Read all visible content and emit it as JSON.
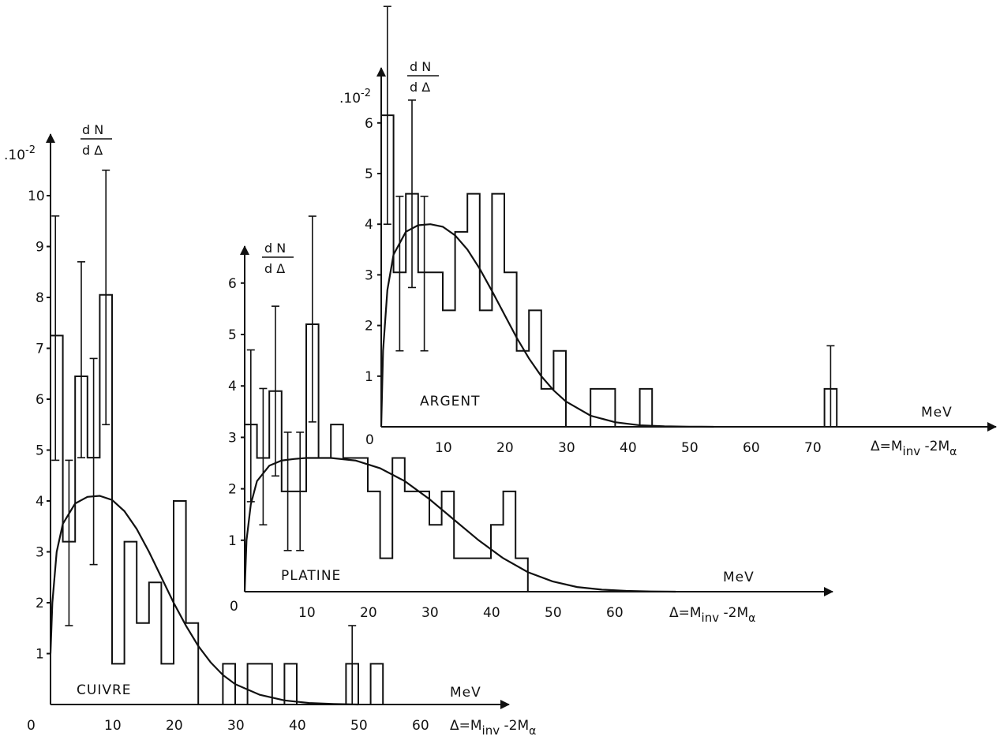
{
  "chart_data": [
    {
      "type": "bar",
      "name": "CUIVRE",
      "label": "CUIVRE",
      "unit": "MeV",
      "xlabel": "Δ=M",
      "xlabel_sub1": "inv",
      "xlabel_mid": " -2M",
      "xlabel_sub2": "α",
      "ylabel_num": "d N",
      "ylabel_den": "d Δ",
      "yscale": ".10",
      "yscale_exp": "-2",
      "xlim": [
        0,
        70
      ],
      "ylim": [
        0,
        11
      ],
      "xticks": [
        0,
        10,
        20,
        30,
        40,
        50,
        60
      ],
      "yticks": [
        1,
        2,
        3,
        4,
        5,
        6,
        7,
        8,
        9,
        10
      ],
      "bin_width": 2,
      "bins": [
        {
          "x0": 0,
          "x1": 2,
          "y": 7.25
        },
        {
          "x0": 2,
          "x1": 4,
          "y": 3.2
        },
        {
          "x0": 4,
          "x1": 6,
          "y": 6.45
        },
        {
          "x0": 6,
          "x1": 8,
          "y": 4.85
        },
        {
          "x0": 8,
          "x1": 10,
          "y": 8.05
        },
        {
          "x0": 10,
          "x1": 12,
          "y": 0.8
        },
        {
          "x0": 12,
          "x1": 14,
          "y": 3.2
        },
        {
          "x0": 14,
          "x1": 16,
          "y": 1.6
        },
        {
          "x0": 16,
          "x1": 18,
          "y": 2.4
        },
        {
          "x0": 18,
          "x1": 20,
          "y": 0.8
        },
        {
          "x0": 20,
          "x1": 22,
          "y": 4.0
        },
        {
          "x0": 22,
          "x1": 24,
          "y": 1.6
        },
        {
          "x0": 28,
          "x1": 30,
          "y": 0.8
        },
        {
          "x0": 30,
          "x1": 32,
          "y": 0.0
        },
        {
          "x0": 32,
          "x1": 36,
          "y": 0.8
        },
        {
          "x0": 38,
          "x1": 40,
          "y": 0.8
        },
        {
          "x0": 48,
          "x1": 50,
          "y": 0.8
        },
        {
          "x0": 52,
          "x1": 54,
          "y": 0.8
        }
      ],
      "error_bars": [
        {
          "x": 0.8,
          "low": 4.8,
          "high": 9.6
        },
        {
          "x": 3.0,
          "low": 1.55,
          "high": 4.8
        },
        {
          "x": 5.0,
          "low": 4.85,
          "high": 8.7
        },
        {
          "x": 7.0,
          "low": 2.75,
          "high": 6.8
        },
        {
          "x": 9.0,
          "low": 5.5,
          "high": 10.5
        },
        {
          "x": 49.0,
          "low": 0.0,
          "high": 1.55
        }
      ],
      "fit_curve": {
        "x": [
          0,
          0.3,
          1,
          2,
          4,
          6,
          8,
          10,
          12,
          14,
          16,
          18,
          20,
          22,
          24,
          26,
          28,
          30,
          34,
          38,
          42,
          46,
          50
        ],
        "y": [
          1.0,
          2.0,
          3.0,
          3.55,
          3.95,
          4.08,
          4.1,
          4.02,
          3.8,
          3.45,
          3.0,
          2.5,
          2.0,
          1.55,
          1.15,
          0.83,
          0.58,
          0.4,
          0.19,
          0.08,
          0.03,
          0.01,
          0.0
        ]
      }
    },
    {
      "type": "bar",
      "name": "PLATINE",
      "label": "PLATINE",
      "unit": "MeV",
      "xlabel": "Δ=M",
      "xlabel_sub1": "inv",
      "xlabel_mid": " -2M",
      "xlabel_sub2": "α",
      "ylabel_num": "d N",
      "ylabel_den": "d Δ",
      "xlim": [
        0,
        95
      ],
      "ylim": [
        0,
        7
      ],
      "xticks": [
        10,
        20,
        30,
        40,
        50,
        60
      ],
      "xtick_zero": "0",
      "yticks": [
        1,
        2,
        3,
        4,
        5,
        6
      ],
      "bins": [
        {
          "x0": 0,
          "x1": 2,
          "y": 3.25
        },
        {
          "x0": 2,
          "x1": 4,
          "y": 2.6
        },
        {
          "x0": 4,
          "x1": 6,
          "y": 3.9
        },
        {
          "x0": 6,
          "x1": 8,
          "y": 1.95
        },
        {
          "x0": 8,
          "x1": 10,
          "y": 1.95
        },
        {
          "x0": 10,
          "x1": 12,
          "y": 5.2
        },
        {
          "x0": 12,
          "x1": 14,
          "y": 2.6
        },
        {
          "x0": 14,
          "x1": 16,
          "y": 3.25
        },
        {
          "x0": 16,
          "x1": 20,
          "y": 2.6
        },
        {
          "x0": 20,
          "x1": 22,
          "y": 1.95
        },
        {
          "x0": 22,
          "x1": 24,
          "y": 0.65
        },
        {
          "x0": 24,
          "x1": 26,
          "y": 2.6
        },
        {
          "x0": 26,
          "x1": 30,
          "y": 1.95
        },
        {
          "x0": 30,
          "x1": 32,
          "y": 1.3
        },
        {
          "x0": 32,
          "x1": 34,
          "y": 1.95
        },
        {
          "x0": 34,
          "x1": 40,
          "y": 0.65
        },
        {
          "x0": 40,
          "x1": 42,
          "y": 1.3
        },
        {
          "x0": 42,
          "x1": 44,
          "y": 1.95
        },
        {
          "x0": 44,
          "x1": 46,
          "y": 0.65
        }
      ],
      "error_bars": [
        {
          "x": 1.0,
          "low": 1.75,
          "high": 4.7
        },
        {
          "x": 3.0,
          "low": 1.3,
          "high": 3.95
        },
        {
          "x": 5.0,
          "low": 2.25,
          "high": 5.55
        },
        {
          "x": 7.0,
          "low": 0.8,
          "high": 3.1
        },
        {
          "x": 9.0,
          "low": 0.8,
          "high": 3.1
        },
        {
          "x": 11.0,
          "low": 3.3,
          "high": 7.3
        }
      ],
      "fit_curve": {
        "x": [
          0,
          0.3,
          1,
          2,
          4,
          6,
          8,
          10,
          14,
          18,
          22,
          26,
          30,
          34,
          38,
          42,
          46,
          50,
          54,
          58,
          62,
          66,
          70
        ],
        "y": [
          0.0,
          1.0,
          1.7,
          2.15,
          2.45,
          2.55,
          2.58,
          2.6,
          2.6,
          2.55,
          2.4,
          2.15,
          1.8,
          1.4,
          1.0,
          0.65,
          0.38,
          0.2,
          0.09,
          0.04,
          0.015,
          0.005,
          0.0
        ]
      }
    },
    {
      "type": "bar",
      "name": "ARGENT",
      "label": "ARGENT",
      "unit": "MeV",
      "xlabel": "Δ=M",
      "xlabel_sub1": "inv",
      "xlabel_mid": " -2M",
      "xlabel_sub2": "α",
      "ylabel_num": "d N",
      "ylabel_den": "d Δ",
      "yscale": ".10",
      "yscale_exp": "-2",
      "xlim": [
        0,
        100
      ],
      "ylim": [
        0,
        7
      ],
      "xticks": [
        10,
        20,
        30,
        40,
        50,
        60,
        70
      ],
      "xtick_zero": "0",
      "yticks": [
        1,
        2,
        3,
        4,
        5,
        6
      ],
      "bins": [
        {
          "x0": 0,
          "x1": 2,
          "y": 6.15
        },
        {
          "x0": 2,
          "x1": 4,
          "y": 3.05
        },
        {
          "x0": 4,
          "x1": 6,
          "y": 4.6
        },
        {
          "x0": 6,
          "x1": 10,
          "y": 3.05
        },
        {
          "x0": 10,
          "x1": 12,
          "y": 2.3
        },
        {
          "x0": 12,
          "x1": 14,
          "y": 3.85
        },
        {
          "x0": 14,
          "x1": 16,
          "y": 4.6
        },
        {
          "x0": 16,
          "x1": 18,
          "y": 2.3
        },
        {
          "x0": 18,
          "x1": 20,
          "y": 4.6
        },
        {
          "x0": 20,
          "x1": 22,
          "y": 3.05
        },
        {
          "x0": 22,
          "x1": 24,
          "y": 1.5
        },
        {
          "x0": 24,
          "x1": 26,
          "y": 2.3
        },
        {
          "x0": 26,
          "x1": 28,
          "y": 0.75
        },
        {
          "x0": 28,
          "x1": 30,
          "y": 1.5
        },
        {
          "x0": 34,
          "x1": 38,
          "y": 0.75
        },
        {
          "x0": 42,
          "x1": 44,
          "y": 0.75
        },
        {
          "x0": 72,
          "x1": 74,
          "y": 0.75
        }
      ],
      "error_bars": [
        {
          "x": 1.0,
          "low": 4.0,
          "high": 8.3
        },
        {
          "x": 3.0,
          "low": 1.5,
          "high": 4.55
        },
        {
          "x": 5.0,
          "low": 2.75,
          "high": 6.45
        },
        {
          "x": 7.0,
          "low": 1.5,
          "high": 4.55
        },
        {
          "x": 73.0,
          "low": 0.0,
          "high": 1.6
        }
      ],
      "fit_curve": {
        "x": [
          0,
          0.3,
          1,
          2,
          4,
          6,
          8,
          10,
          12,
          14,
          16,
          18,
          20,
          22,
          24,
          26,
          28,
          30,
          34,
          38,
          42,
          46,
          50,
          54
        ],
        "y": [
          0.0,
          1.5,
          2.7,
          3.4,
          3.85,
          3.98,
          4.0,
          3.95,
          3.78,
          3.5,
          3.12,
          2.68,
          2.22,
          1.76,
          1.35,
          1.0,
          0.72,
          0.5,
          0.22,
          0.09,
          0.03,
          0.01,
          0.003,
          0.0
        ]
      }
    }
  ]
}
